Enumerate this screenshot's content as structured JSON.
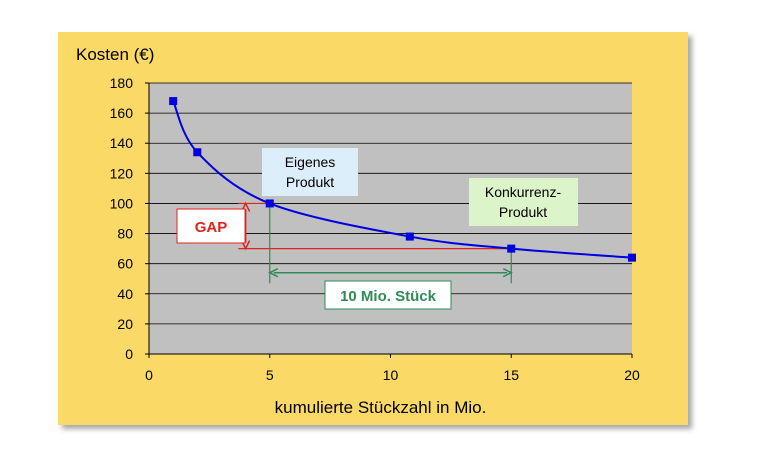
{
  "chart_data": {
    "type": "line",
    "ylabel": "Kosten (€)",
    "xlabel": "kumulierte Stückzahl in Mio.",
    "xlim": [
      0,
      20
    ],
    "ylim": [
      0,
      180
    ],
    "xticks": [
      "0",
      "5",
      "10",
      "15",
      "20"
    ],
    "yticks": [
      "0",
      "20",
      "40",
      "60",
      "80",
      "100",
      "120",
      "140",
      "160",
      "180"
    ],
    "grid": "horizontal",
    "series": [
      {
        "color": "#0000e0",
        "x": [
          1,
          2,
          5,
          10.8,
          15,
          20
        ],
        "y": [
          168,
          134,
          100,
          78,
          70,
          64
        ]
      }
    ],
    "annotations": {
      "eigenes": {
        "line1": "Eigenes",
        "line2": "Produkt",
        "color": "#dbeefa"
      },
      "konkurrenz": {
        "line1": "Konkurrenz-",
        "line2": "Produkt",
        "color": "#dcf4c9"
      },
      "gap": {
        "label": "GAP",
        "color": "#e0231c"
      },
      "range": {
        "label": "10 Mio. Stück",
        "color": "#2e8b57"
      }
    },
    "colors": {
      "panel": "#fbd966",
      "plot_area": "#c0c0c0",
      "curve": "#0000e0"
    }
  }
}
